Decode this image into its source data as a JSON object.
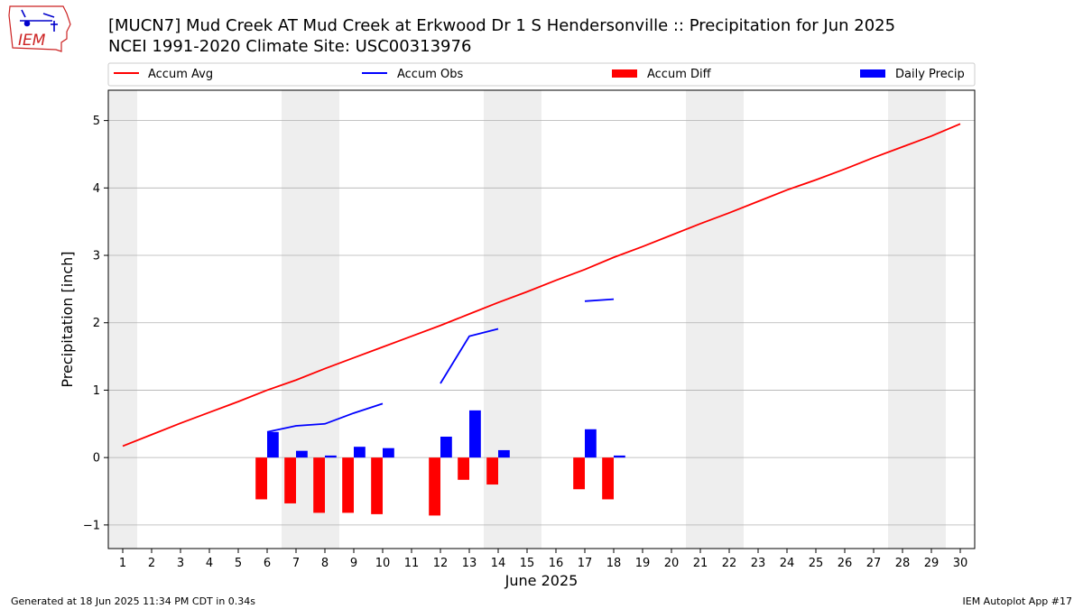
{
  "title_line1": "[MUCN7] Mud Creek  AT Mud Creek at Erkwood Dr 1 S Hendersonville :: Precipitation for Jun 2025",
  "title_line2": "NCEI 1991-2020 Climate Site: USC00313976",
  "logo_text": "IEM",
  "footer_left": "Generated at 18 Jun 2025 11:34 PM CDT in 0.34s",
  "footer_right": "IEM Autoplot App #17",
  "colors": {
    "avg": "#ff0000",
    "obs": "#0000ff",
    "diff": "#ff0000",
    "daily": "#0000ff",
    "weekend": "#eeeeee",
    "grid": "#b0b0b0",
    "logo": "#cc2222"
  },
  "chart_data": {
    "type": "bar",
    "xlabel": "June 2025",
    "ylabel": "Precipitation [inch]",
    "xlim": [
      0.5,
      30.5
    ],
    "ylim": [
      -1.35,
      5.45
    ],
    "yticks": [
      -1,
      0,
      1,
      2,
      3,
      4,
      5
    ],
    "ytick_labels": [
      "−1",
      "0",
      "1",
      "2",
      "3",
      "4",
      "5"
    ],
    "xticks": [
      1,
      2,
      3,
      4,
      5,
      6,
      7,
      8,
      9,
      10,
      11,
      12,
      13,
      14,
      15,
      16,
      17,
      18,
      19,
      20,
      21,
      22,
      23,
      24,
      25,
      26,
      27,
      28,
      29,
      30
    ],
    "grid": "horizontal",
    "legend_position": "top",
    "legend": [
      "Accum Avg",
      "Accum Obs",
      "Accum Diff",
      "Daily Precip"
    ],
    "weekends": [
      1,
      7,
      8,
      14,
      15,
      21,
      22,
      28,
      29
    ],
    "series": [
      {
        "name": "Accum Avg",
        "type": "line",
        "x": [
          1,
          2,
          3,
          4,
          5,
          6,
          7,
          8,
          9,
          10,
          11,
          12,
          13,
          14,
          15,
          16,
          17,
          18,
          19,
          20,
          21,
          22,
          23,
          24,
          25,
          26,
          27,
          28,
          29,
          30
        ],
        "values": [
          0.17,
          0.34,
          0.51,
          0.67,
          0.83,
          1.0,
          1.15,
          1.32,
          1.48,
          1.64,
          1.8,
          1.96,
          2.13,
          2.3,
          2.46,
          2.63,
          2.79,
          2.97,
          3.13,
          3.3,
          3.47,
          3.63,
          3.8,
          3.97,
          4.12,
          4.28,
          4.45,
          4.61,
          4.77,
          4.95
        ]
      },
      {
        "name": "Accum Obs",
        "type": "line",
        "segments": [
          {
            "x": [
              6,
              7,
              8,
              9,
              10
            ],
            "values": [
              0.38,
              0.47,
              0.5,
              0.66,
              0.8
            ]
          },
          {
            "x": [
              12,
              13,
              14
            ],
            "values": [
              1.1,
              1.8,
              1.91
            ]
          },
          {
            "x": [
              17,
              18
            ],
            "values": [
              2.32,
              2.35
            ]
          }
        ]
      },
      {
        "name": "Accum Diff",
        "type": "bar",
        "x": [
          6,
          7,
          8,
          9,
          10,
          12,
          13,
          14,
          17,
          18
        ],
        "values": [
          -0.62,
          -0.68,
          -0.82,
          -0.82,
          -0.84,
          -0.86,
          -0.33,
          -0.4,
          -0.47,
          -0.62
        ]
      },
      {
        "name": "Daily Precip",
        "type": "bar",
        "x": [
          6,
          7,
          8,
          9,
          10,
          12,
          13,
          14,
          17,
          18
        ],
        "values": [
          0.38,
          0.1,
          0.03,
          0.16,
          0.14,
          0.31,
          0.7,
          0.11,
          0.42,
          0.03
        ]
      }
    ]
  }
}
